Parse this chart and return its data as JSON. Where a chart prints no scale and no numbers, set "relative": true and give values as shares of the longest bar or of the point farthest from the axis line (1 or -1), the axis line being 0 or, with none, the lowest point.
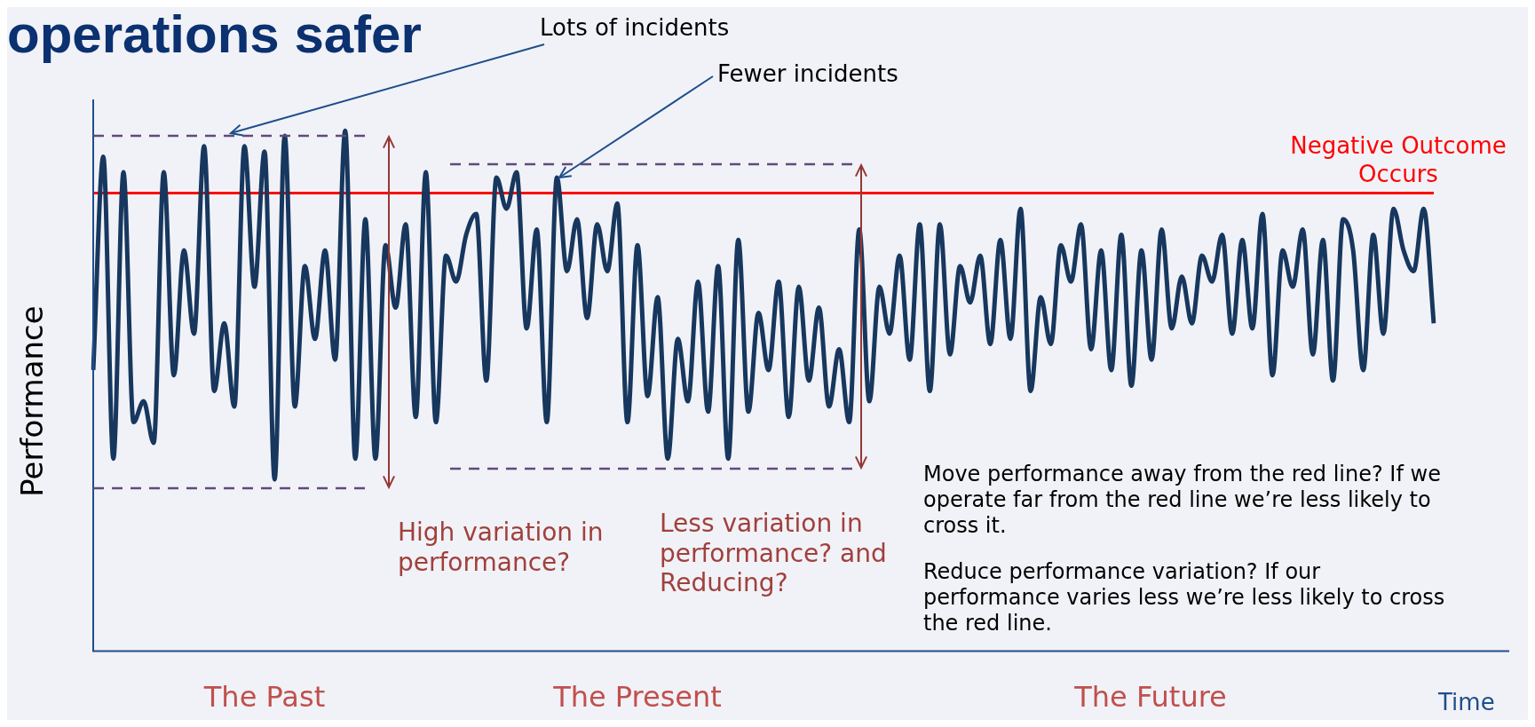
{
  "chart_data": {
    "type": "line",
    "title": "operations safer",
    "xlabel": "Time",
    "ylabel": "Performance",
    "relative": true,
    "grid": false,
    "legend": false,
    "categories": [
      null,
      null,
      null,
      null,
      null,
      null,
      null,
      null,
      null,
      null,
      null,
      null,
      null,
      null,
      null,
      null,
      null,
      null,
      null,
      null,
      null,
      null,
      null,
      null,
      null,
      null,
      null,
      null,
      null,
      null,
      null,
      null,
      null,
      null,
      null,
      null,
      null,
      null,
      null,
      null,
      null,
      null,
      null,
      null,
      null,
      null,
      null,
      null,
      null,
      null,
      null,
      null,
      null,
      null,
      null,
      null,
      null,
      null,
      null,
      null,
      null,
      null,
      null,
      null,
      null,
      null,
      null,
      null,
      null,
      null,
      null,
      null,
      null,
      null,
      null,
      null,
      null,
      null,
      null,
      null,
      null,
      null,
      null,
      null,
      null,
      null,
      null,
      null,
      null,
      null,
      null,
      null,
      null,
      null,
      null,
      null,
      null,
      null,
      null,
      null,
      null,
      null,
      null,
      null,
      null,
      null,
      null,
      null,
      null,
      null,
      null,
      null,
      null,
      null,
      null,
      null,
      null,
      null,
      null,
      null,
      null,
      null,
      null,
      null,
      null,
      null,
      null,
      null,
      null,
      null,
      null,
      null,
      null,
      null
    ],
    "series": [
      {
        "color": "#17375e",
        "values": [
          0.54,
          0.95,
          0.37,
          0.92,
          0.44,
          0.48,
          0.4,
          0.92,
          0.53,
          0.77,
          0.61,
          0.97,
          0.5,
          0.63,
          0.47,
          0.97,
          0.7,
          0.96,
          0.33,
          0.99,
          0.47,
          0.74,
          0.6,
          0.77,
          0.56,
          1,
          0.37,
          0.83,
          0.37,
          0.78,
          0.66,
          0.82,
          0.45,
          0.92,
          0.44,
          0.76,
          0.71,
          0.8,
          0.84,
          0.52,
          0.91,
          0.85,
          0.92,
          0.62,
          0.81,
          0.44,
          0.91,
          0.73,
          0.83,
          0.64,
          0.82,
          0.73,
          0.86,
          0.44,
          0.78,
          0.49,
          0.68,
          0.37,
          0.6,
          0.48,
          0.71,
          0.46,
          0.74,
          0.37,
          0.79,
          0.46,
          0.65,
          0.54,
          0.71,
          0.45,
          0.7,
          0.52,
          0.66,
          0.47,
          0.58,
          0.44,
          0.81,
          0.48,
          0.7,
          0.61,
          0.76,
          0.56,
          0.82,
          0.5,
          0.82,
          0.57,
          0.74,
          0.67,
          0.76,
          0.59,
          0.79,
          0.6,
          0.85,
          0.5,
          0.68,
          0.59,
          0.78,
          0.71,
          0.82,
          0.58,
          0.77,
          0.54,
          0.8,
          0.51,
          0.77,
          0.56,
          0.81,
          0.62,
          0.72,
          0.63,
          0.76,
          0.71,
          0.8,
          0.61,
          0.79,
          0.62,
          0.84,
          0.53,
          0.77,
          0.7,
          0.81,
          0.57,
          0.79,
          0.52,
          0.83,
          0.77,
          0.54,
          0.8,
          0.61,
          0.85,
          0.77,
          0.73,
          0.85,
          0.63
        ]
      }
    ],
    "ref_lines": [
      {
        "axis": "y",
        "value": 0.88,
        "label": "Negative Outcome Occurs",
        "color": "#ff0000"
      }
    ],
    "annotations": [
      "Lots of incidents",
      "Fewer incidents",
      "High variation in performance?",
      "Less variation in performance? and Reducing?",
      "Move performance away from the red line? If we operate far from the red line we’re less likely to cross it.",
      "Reduce performance variation? If our performance varies less we’re less likely to cross the red line.",
      "The Past",
      "The Present",
      "The Future"
    ]
  }
}
